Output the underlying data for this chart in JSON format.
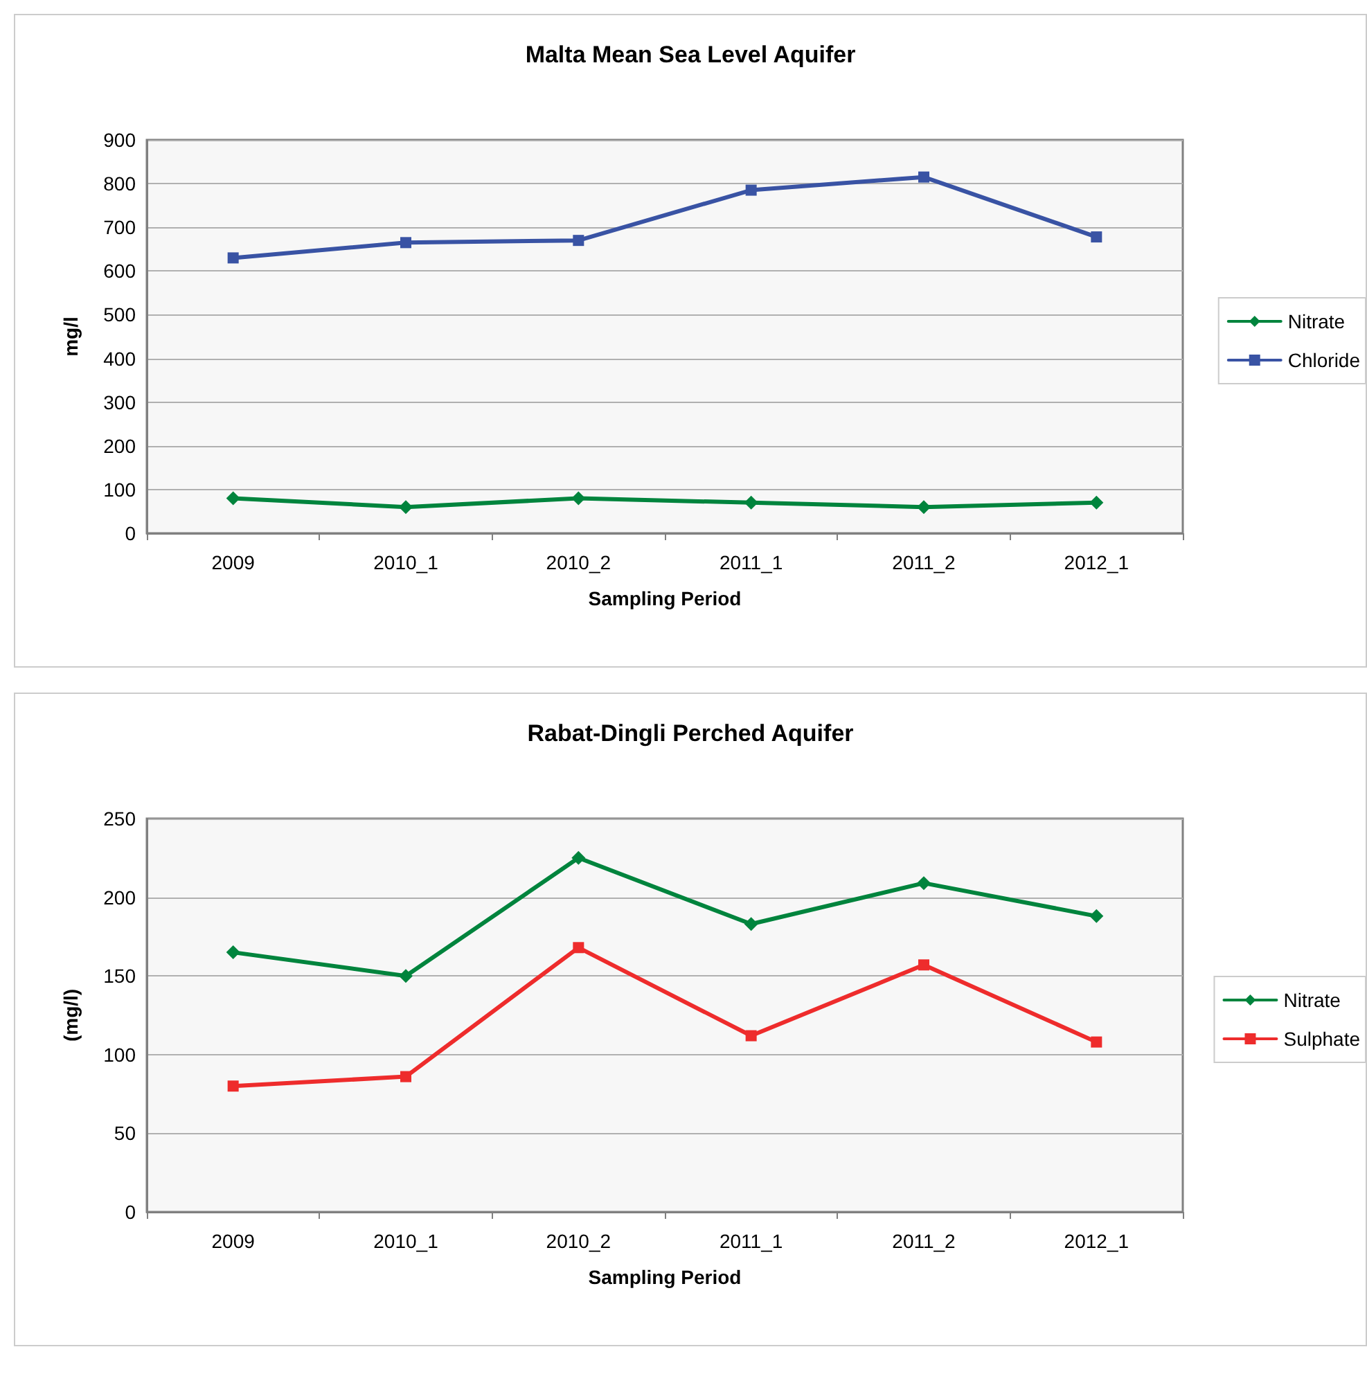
{
  "chart_data": [
    {
      "type": "line",
      "title": "Malta Mean Sea Level Aquifer",
      "xlabel": "Sampling Period",
      "ylabel": "mg/l",
      "categories": [
        "2009",
        "2010_1",
        "2010_2",
        "2011_1",
        "2011_2",
        "2012_1"
      ],
      "series": [
        {
          "name": "Nitrate",
          "color": "#00843d",
          "marker": "diamond",
          "values": [
            80,
            60,
            80,
            70,
            60,
            70
          ]
        },
        {
          "name": "Chloride",
          "color": "#3953a4",
          "marker": "square",
          "values": [
            630,
            665,
            670,
            785,
            815,
            678
          ]
        }
      ],
      "ylim": [
        0,
        900
      ],
      "yticks": [
        0,
        100,
        200,
        300,
        400,
        500,
        600,
        700,
        800,
        900
      ],
      "grid": "y",
      "legend": "right",
      "line_style": "solid"
    },
    {
      "type": "line",
      "title": "Rabat-Dingli Perched Aquifer",
      "xlabel": "Sampling Period",
      "ylabel": "(mg/l)",
      "categories": [
        "2009",
        "2010_1",
        "2010_2",
        "2011_1",
        "2011_2",
        "2012_1"
      ],
      "series": [
        {
          "name": "Nitrate",
          "color": "#00843d",
          "marker": "diamond",
          "values": [
            165,
            150,
            225,
            183,
            209,
            188
          ]
        },
        {
          "name": "Sulphate",
          "color": "#ee2c2c",
          "marker": "square",
          "values": [
            80,
            86,
            168,
            112,
            157,
            108
          ]
        }
      ],
      "ylim": [
        0,
        250
      ],
      "yticks": [
        0,
        50,
        100,
        150,
        200,
        250
      ],
      "grid": "y",
      "legend": "right",
      "line_style": "solid"
    }
  ]
}
